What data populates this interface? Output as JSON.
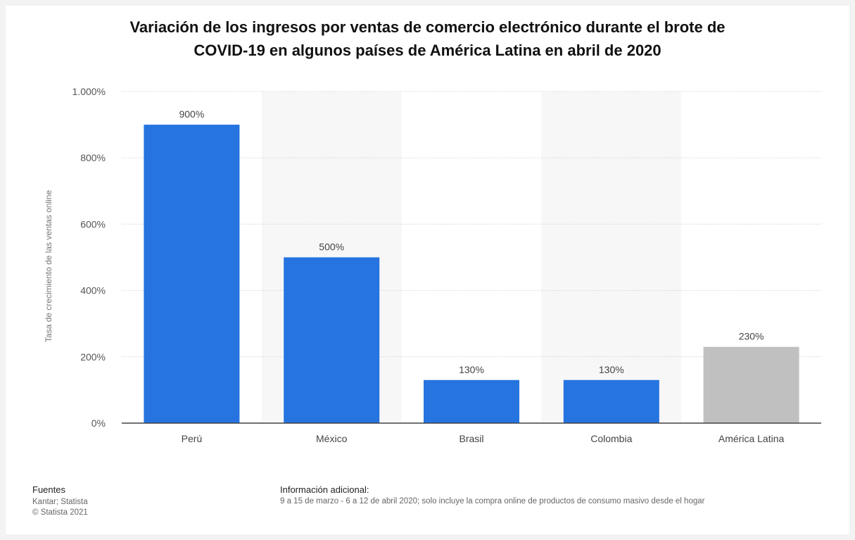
{
  "chart_data": {
    "type": "bar",
    "title": "Variación de los ingresos por ventas de comercio electrónico durante el brote de COVID-19 en algunos países de América Latina en abril de 2020",
    "title_lines": [
      "Variación de los ingresos por ventas de comercio electrónico durante el brote de",
      "COVID-19 en algunos países de América Latina en abril de 2020"
    ],
    "xlabel": "",
    "ylabel": "Tasa de crecimiento de las ventas online",
    "categories": [
      "Perú",
      "México",
      "Brasil",
      "Colombia",
      "América Latina"
    ],
    "values": [
      900,
      500,
      130,
      130,
      230
    ],
    "value_labels": [
      "900%",
      "500%",
      "130%",
      "130%",
      "230%"
    ],
    "ylim": [
      0,
      1000
    ],
    "yticks": [
      0,
      200,
      400,
      600,
      800,
      1000
    ],
    "ytick_labels": [
      "0%",
      "200%",
      "400%",
      "600%",
      "800%",
      "1.000%"
    ],
    "grid": true,
    "colors": {
      "country": "#2574e0",
      "aggregate": "#c0c0c0",
      "band": "#f7f7f7",
      "grid": "#c8c8c8",
      "axis": "#444444"
    },
    "bar_colors": [
      "#2574e0",
      "#2574e0",
      "#2574e0",
      "#2574e0",
      "#c0c0c0"
    ]
  },
  "footer": {
    "sources_heading": "Fuentes",
    "sources_line1": "Kantar; Statista",
    "sources_line2": "© Statista 2021",
    "info_heading": "Información adicional:",
    "info_text": "9 a 15 de marzo - 6 a 12 de abril 2020; solo incluye la compra online de productos de consumo masivo desde el hogar"
  }
}
